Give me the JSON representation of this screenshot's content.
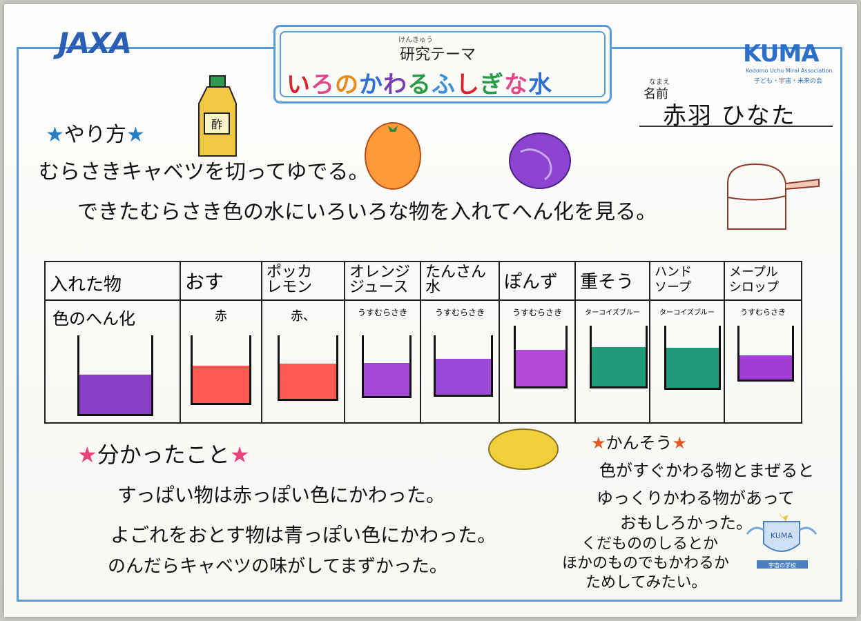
{
  "header": {
    "org_logo": "JAXA",
    "theme_furigana": "けんきゅう",
    "theme_label": "研究テーマ",
    "theme_title_chars": [
      "い",
      "ろ",
      "の",
      "か",
      "わ",
      "る",
      "ふ",
      "し",
      "ぎ",
      "な",
      "水"
    ],
    "theme_title_colors": [
      "#d8252e",
      "#e2478a",
      "#e98a1c",
      "#2f6fd0",
      "#7a3fb0",
      "#2a9b46",
      "#3a8fd6",
      "#d8252e",
      "#2a9b46",
      "#e2478a",
      "#2f6fd0"
    ],
    "partner_logo": "KUMA",
    "partner_sub": "Kodomo Uchu Mirai Association",
    "partner_sub2": "子ども・宇宙・未来の会"
  },
  "name": {
    "furigana": "なまえ",
    "label": "名前",
    "value": "赤羽 ひなた"
  },
  "method": {
    "heading": "やり方",
    "line1": "むらさきキャベツを切ってゆでる。",
    "line2": "できたむらさき色の水にいろいろな物を入れてへん化を見る。",
    "bottle_label": "酢"
  },
  "table": {
    "row1_header": "入れた物",
    "row2_header": "色のへん化",
    "items": [
      {
        "name": "おす",
        "note": "赤",
        "color": "#ff5a52",
        "level": 0.55
      },
      {
        "name": "ポッカ レモン",
        "note": "赤、",
        "color": "#ff5a52",
        "level": 0.55
      },
      {
        "name": "オレンジ ジュース",
        "note": "うすむらさき",
        "color": "#a248d6",
        "level": 0.55
      },
      {
        "name": "たんさん 水",
        "note": "うすむらさき",
        "color": "#9b48d6",
        "level": 0.6
      },
      {
        "name": "ぽんず",
        "note": "うすむらさき",
        "color": "#b34ad6",
        "level": 0.6
      },
      {
        "name": "重そう",
        "note": "ターコイズブルー",
        "color": "#1f9b7a",
        "level": 0.65
      },
      {
        "name": "ハンド ソープ",
        "note": "ターコイズブルー",
        "color": "#1f9b7a",
        "level": 0.65
      },
      {
        "name": "メープル シロップ",
        "note": "うすむらさき",
        "color": "#a23ed6",
        "level": 0.45
      }
    ],
    "first_cup_color": "#8a3fc8",
    "first_cup_level": 0.5
  },
  "findings": {
    "heading": "分かったこと",
    "line1": "すっぱい物は赤っぽい色にかわった。",
    "line2": "よごれをおとす物は青っぽい色にかわった。",
    "line3": "のんだらキャベツの味がしてまずかった。"
  },
  "impressions": {
    "heading": "かんそう",
    "line1": "色がすぐかわる物とまぜると",
    "line2": "ゆっくりかわる物があって",
    "line3": "おもしろかった。",
    "line4": "くだもののしるとか",
    "line5": "ほかのものでもかわるか",
    "line6": "ためしてみたい。",
    "badge_text": "KUMA",
    "badge_caption": "宇宙の学校"
  }
}
